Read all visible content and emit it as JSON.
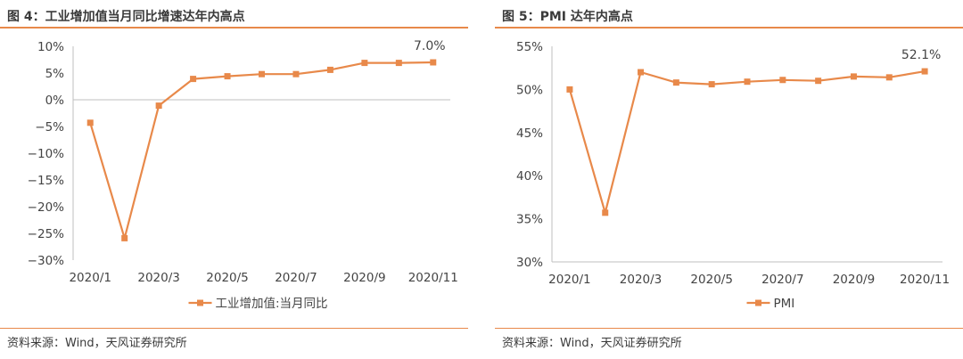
{
  "colors": {
    "accent": "#e8894a",
    "series": "#e8894a",
    "axis": "#bfbfbf"
  },
  "source_text": "资料来源：Wind，天风证券研究所",
  "chart_data": [
    {
      "type": "line",
      "title": "图 4：工业增加值当月同比增速达年内高点",
      "categories": [
        "2020/1",
        "2020/2",
        "2020/3",
        "2020/4",
        "2020/5",
        "2020/6",
        "2020/7",
        "2020/8",
        "2020/9",
        "2020/10",
        "2020/11"
      ],
      "x_tick_labels": [
        "2020/1",
        "2020/3",
        "2020/5",
        "2020/7",
        "2020/9",
        "2020/11"
      ],
      "series": [
        {
          "name": "工业增加值:当月同比",
          "values": [
            -4.3,
            -25.9,
            -1.1,
            3.9,
            4.4,
            4.8,
            4.8,
            5.6,
            6.9,
            6.9,
            7.0
          ]
        }
      ],
      "ylim": [
        -30,
        10
      ],
      "y_ticks": [
        10,
        5,
        0,
        -5,
        -10,
        -15,
        -20,
        -25,
        -30
      ],
      "y_tick_labels": [
        "10%",
        "5%",
        "0%",
        "−5%",
        "−10%",
        "−15%",
        "−20%",
        "−25%",
        "−30%"
      ],
      "annotation": "7.0%",
      "legend_position": "bottom-center",
      "grid": false
    },
    {
      "type": "line",
      "title": "图 5：PMI 达年内高点",
      "categories": [
        "2020/1",
        "2020/2",
        "2020/3",
        "2020/4",
        "2020/5",
        "2020/6",
        "2020/7",
        "2020/8",
        "2020/9",
        "2020/10",
        "2020/11"
      ],
      "x_tick_labels": [
        "2020/1",
        "2020/3",
        "2020/5",
        "2020/7",
        "2020/9",
        "2020/11"
      ],
      "series": [
        {
          "name": "PMI",
          "values": [
            50.0,
            35.7,
            52.0,
            50.8,
            50.6,
            50.9,
            51.1,
            51.0,
            51.5,
            51.4,
            52.1
          ]
        }
      ],
      "ylim": [
        30,
        55
      ],
      "y_ticks": [
        55,
        50,
        45,
        40,
        35,
        30
      ],
      "y_tick_labels": [
        "55%",
        "50%",
        "45%",
        "40%",
        "35%",
        "30%"
      ],
      "annotation": "52.1%",
      "legend_position": "bottom-center",
      "grid": false
    }
  ]
}
